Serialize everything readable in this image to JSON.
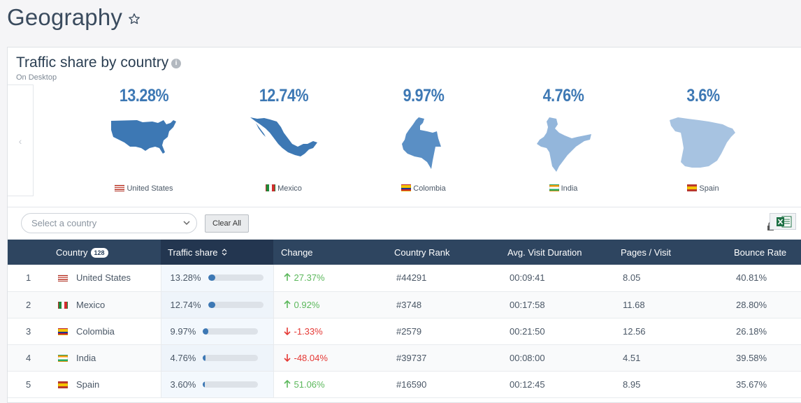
{
  "page": {
    "title": "Geography"
  },
  "card": {
    "title": "Traffic share by country",
    "subtitle": "On Desktop",
    "prev_glyph": "‹"
  },
  "top_countries": [
    {
      "pct": "13.28%",
      "name": "United States",
      "shade": "#3d78b4"
    },
    {
      "pct": "12.74%",
      "name": "Mexico",
      "shade": "#3d78b4"
    },
    {
      "pct": "9.97%",
      "name": "Colombia",
      "shade": "#5a8fc5"
    },
    {
      "pct": "4.76%",
      "name": "India",
      "shade": "#93b6db"
    },
    {
      "pct": "3.6%",
      "name": "Spain",
      "shade": "#a7c3e1"
    }
  ],
  "filters": {
    "select_placeholder": "Select a country",
    "clear_label": "Clear All"
  },
  "table": {
    "headers": {
      "country": "Country",
      "country_count": "128",
      "traffic_share": "Traffic share",
      "change": "Change",
      "rank": "Country Rank",
      "duration": "Avg. Visit Duration",
      "pages": "Pages / Visit",
      "bounce": "Bounce Rate"
    },
    "rows": [
      {
        "num": "1",
        "country": "United States",
        "share": "13.28%",
        "share_value": 13.28,
        "change": "27.37%",
        "direction": "up",
        "rank": "#44291",
        "duration": "00:09:41",
        "pages": "8.05",
        "bounce": "40.81%"
      },
      {
        "num": "2",
        "country": "Mexico",
        "share": "12.74%",
        "share_value": 12.74,
        "change": "0.92%",
        "direction": "up",
        "rank": "#3748",
        "duration": "00:17:58",
        "pages": "11.68",
        "bounce": "28.80%"
      },
      {
        "num": "3",
        "country": "Colombia",
        "share": "9.97%",
        "share_value": 9.97,
        "change": "-1.33%",
        "direction": "down",
        "rank": "#2579",
        "duration": "00:21:50",
        "pages": "12.56",
        "bounce": "26.18%"
      },
      {
        "num": "4",
        "country": "India",
        "share": "4.76%",
        "share_value": 4.76,
        "change": "-48.04%",
        "direction": "down",
        "rank": "#39737",
        "duration": "00:08:00",
        "pages": "4.51",
        "bounce": "39.58%"
      },
      {
        "num": "5",
        "country": "Spain",
        "share": "3.60%",
        "share_value": 3.6,
        "change": "51.06%",
        "direction": "up",
        "rank": "#16590",
        "duration": "00:12:45",
        "pages": "8.95",
        "bounce": "35.67%"
      }
    ]
  },
  "colors": {
    "accent": "#3d78b4",
    "header_bg": "#2e4560",
    "up": "#5cb85c",
    "down": "#e53935"
  },
  "icons": [
    "star-icon",
    "info-icon",
    "chevron-down-icon",
    "excel-export-icon",
    "lock-icon",
    "sort-icon",
    "arrow-up-icon",
    "arrow-down-icon"
  ]
}
